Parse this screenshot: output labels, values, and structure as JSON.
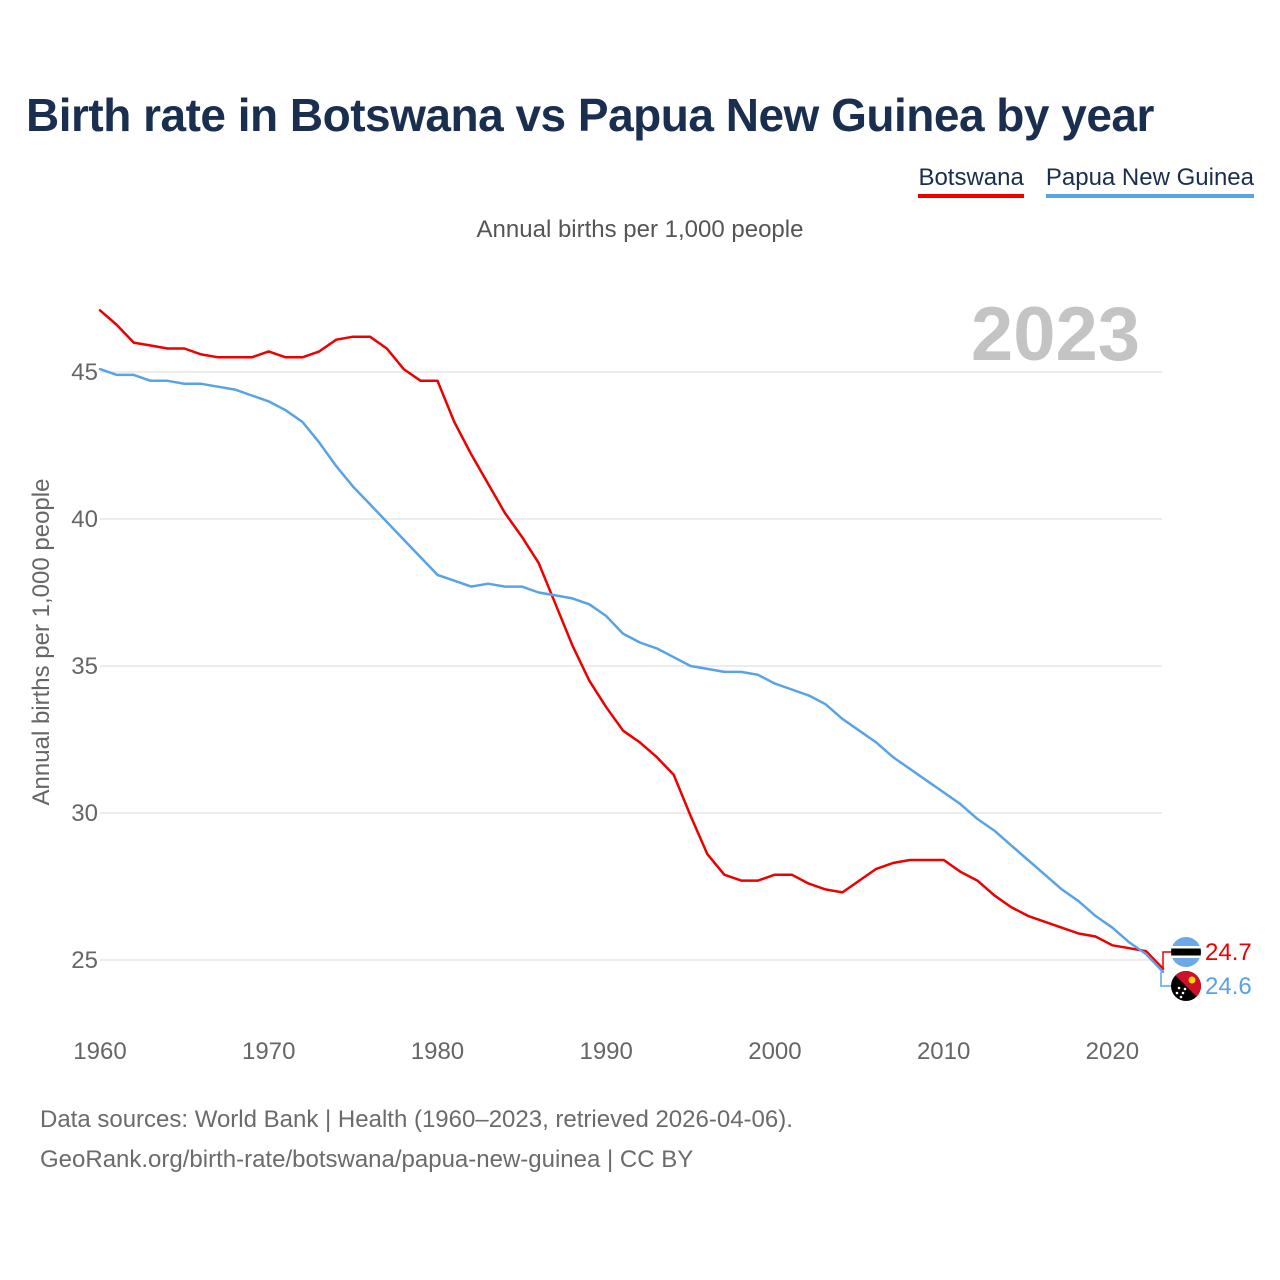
{
  "header": {
    "title": "Birth rate in Botswana vs Papua New Guinea by year",
    "subtitle": "Annual births per 1,000 people"
  },
  "legend": {
    "items": [
      {
        "label": "Botswana",
        "color": "#ee0000"
      },
      {
        "label": "Papua New Guinea",
        "color": "#5aa2e6"
      }
    ]
  },
  "footer": {
    "source_line": "Data sources: World Bank | Health (1960–2023, retrieved 2026-04-06).",
    "url_line": "GeoRank.org/birth-rate/botswana/papua-new-guinea | CC BY"
  },
  "chart_data": {
    "type": "line",
    "title": "Birth rate in Botswana vs Papua New Guinea by year",
    "subtitle": "Annual births per 1,000 people",
    "xlabel": "",
    "ylabel": "Annual births per 1,000 people",
    "xlim": [
      1960,
      2023
    ],
    "ylim": [
      23,
      47.5
    ],
    "xticks": [
      "1960",
      "1970",
      "1980",
      "1990",
      "2000",
      "2010",
      "2020"
    ],
    "yticks": [
      "25",
      "30",
      "35",
      "40",
      "45"
    ],
    "grid": true,
    "legend_position": "top-right",
    "year_watermark": "2023",
    "x": [
      1960,
      1961,
      1962,
      1963,
      1964,
      1965,
      1966,
      1967,
      1968,
      1969,
      1970,
      1971,
      1972,
      1973,
      1974,
      1975,
      1976,
      1977,
      1978,
      1979,
      1980,
      1981,
      1982,
      1983,
      1984,
      1985,
      1986,
      1987,
      1988,
      1989,
      1990,
      1991,
      1992,
      1993,
      1994,
      1995,
      1996,
      1997,
      1998,
      1999,
      2000,
      2001,
      2002,
      2003,
      2004,
      2005,
      2006,
      2007,
      2008,
      2009,
      2010,
      2011,
      2012,
      2013,
      2014,
      2015,
      2016,
      2017,
      2018,
      2019,
      2020,
      2021,
      2022,
      2023
    ],
    "series": [
      {
        "name": "Botswana",
        "color": "#ee0000",
        "end_label": "24.7",
        "flag": "botswana-flag-icon",
        "values": [
          47.1,
          46.6,
          46.0,
          45.9,
          45.8,
          45.8,
          45.6,
          45.5,
          45.5,
          45.5,
          45.7,
          45.5,
          45.5,
          45.7,
          46.1,
          46.2,
          46.2,
          45.8,
          45.1,
          44.7,
          44.7,
          43.3,
          42.2,
          41.2,
          40.2,
          39.4,
          38.5,
          37.1,
          35.7,
          34.5,
          33.6,
          32.8,
          32.4,
          31.9,
          31.3,
          29.9,
          28.6,
          27.9,
          27.7,
          27.7,
          27.9,
          27.9,
          27.6,
          27.4,
          27.3,
          27.7,
          28.1,
          28.3,
          28.4,
          28.4,
          28.4,
          28.0,
          27.7,
          27.2,
          26.8,
          26.5,
          26.3,
          26.1,
          25.9,
          25.8,
          25.5,
          25.4,
          25.3,
          24.7
        ]
      },
      {
        "name": "Papua New Guinea",
        "color": "#5aa2e6",
        "end_label": "24.6",
        "flag": "papua-new-guinea-flag-icon",
        "values": [
          45.1,
          44.9,
          44.9,
          44.7,
          44.7,
          44.6,
          44.6,
          44.5,
          44.4,
          44.2,
          44.0,
          43.7,
          43.3,
          42.6,
          41.8,
          41.1,
          40.5,
          39.9,
          39.3,
          38.7,
          38.1,
          37.9,
          37.7,
          37.8,
          37.7,
          37.7,
          37.5,
          37.4,
          37.3,
          37.1,
          36.7,
          36.1,
          35.8,
          35.6,
          35.3,
          35.0,
          34.9,
          34.8,
          34.8,
          34.7,
          34.4,
          34.2,
          34.0,
          33.7,
          33.2,
          32.8,
          32.4,
          31.9,
          31.5,
          31.1,
          30.7,
          30.3,
          29.8,
          29.4,
          28.9,
          28.4,
          27.9,
          27.4,
          27.0,
          26.5,
          26.1,
          25.6,
          25.2,
          24.6
        ]
      }
    ]
  }
}
